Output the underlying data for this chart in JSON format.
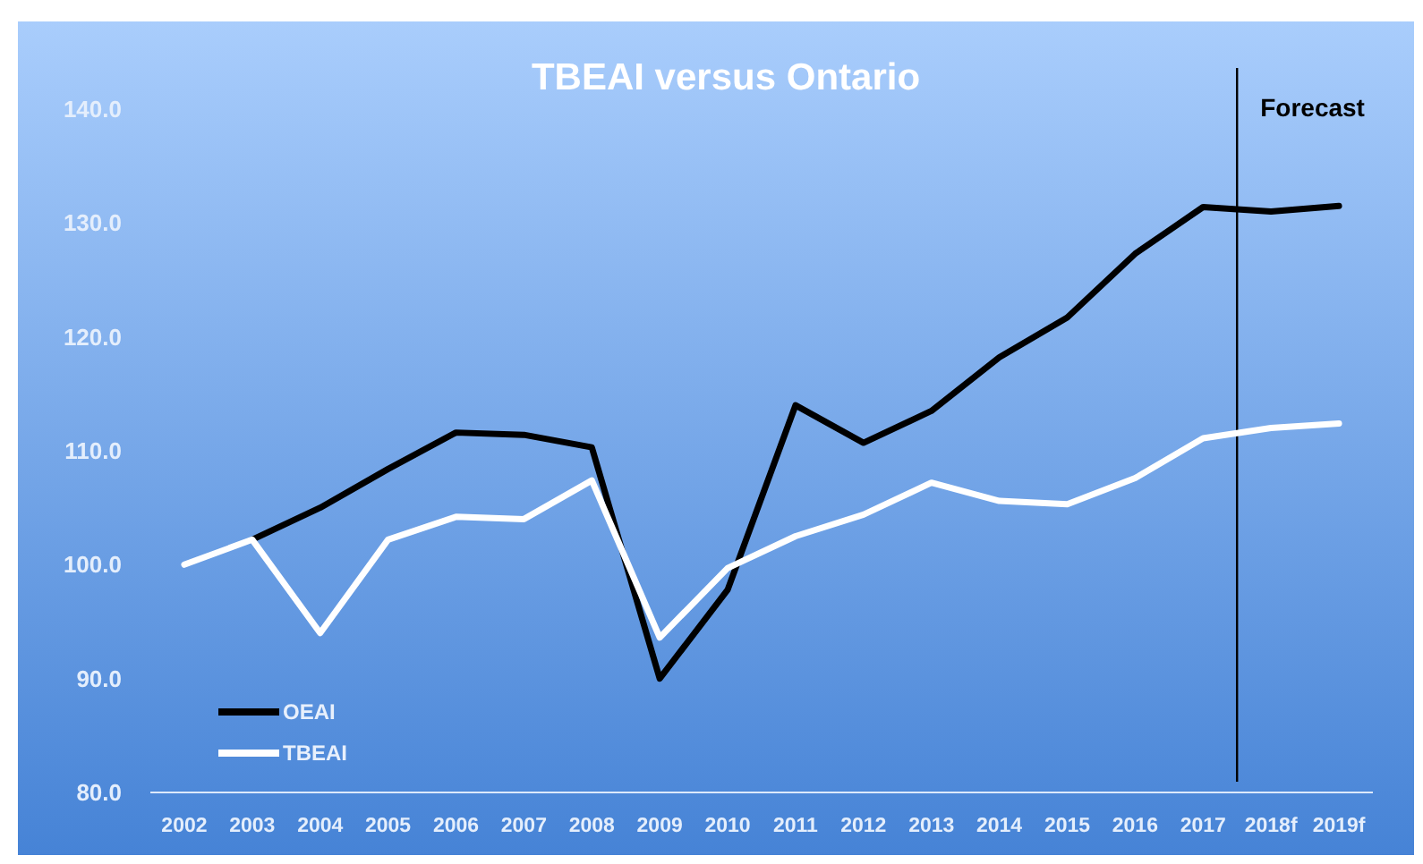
{
  "chart_data": {
    "type": "line",
    "title": "TBEAI versus Ontario",
    "x": [
      2002,
      2003,
      2004,
      2005,
      2006,
      2007,
      2008,
      2009,
      2010,
      2011,
      2012,
      2013,
      2014,
      2015,
      2016,
      2017,
      2018,
      2019
    ],
    "xlim": [
      2001.5,
      2019.5
    ],
    "xticks": [
      2002,
      2003,
      2004,
      2005,
      2006,
      2007,
      2008,
      2009,
      2010,
      2011,
      2012,
      2013,
      2014,
      2015,
      2016,
      2017,
      {
        "value": 2018,
        "label": "2018f"
      },
      {
        "value": 2019,
        "label": "2019f"
      }
    ],
    "series": [
      {
        "name": "OEAI",
        "color": "#000000",
        "values": [
          null,
          102.2,
          105,
          108.4,
          111.6,
          111.4,
          110.3,
          90,
          97.8,
          114,
          110.7,
          113.5,
          118.2,
          121.7,
          127.3,
          131.4,
          131,
          131.5
        ]
      },
      {
        "name": "TBEAI",
        "color": "#ffffff",
        "values": [
          100,
          102.2,
          94,
          102.2,
          104.2,
          104,
          107.4,
          93.6,
          99.7,
          102.5,
          104.4,
          107.2,
          105.6,
          105.3,
          107.6,
          111.1,
          112,
          112.4
        ]
      }
    ],
    "ylim": [
      80,
      140
    ],
    "yticks": [
      {
        "value": 80,
        "label": "80.0"
      },
      {
        "value": 90,
        "label": "90.0"
      },
      {
        "value": 100,
        "label": "100.0"
      },
      {
        "value": 110,
        "label": "110.0"
      },
      {
        "value": 120,
        "label": "120.0"
      },
      {
        "value": 130,
        "label": "130.0"
      },
      {
        "value": 140,
        "label": "140.0"
      }
    ],
    "ref_lines": [
      {
        "axis": "x",
        "value": 2017.5,
        "label": "Forecast",
        "color": "#000000"
      }
    ],
    "grid": false,
    "legend": "bottom left",
    "marker": "none",
    "line_style": "solid"
  }
}
